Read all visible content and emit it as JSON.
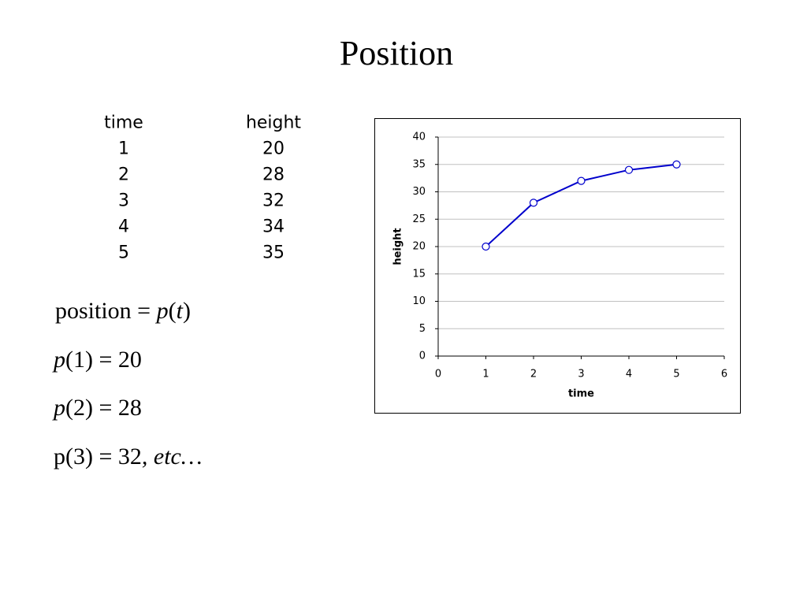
{
  "title": "Position",
  "table": {
    "header": [
      "time",
      "height"
    ],
    "rows": [
      [
        1,
        20
      ],
      [
        2,
        28
      ],
      [
        3,
        32
      ],
      [
        4,
        34
      ],
      [
        5,
        35
      ]
    ]
  },
  "equations": [
    [
      "position = ",
      "p",
      "(",
      "t",
      ")"
    ],
    [
      "p",
      "(1) = 20"
    ],
    [
      "p",
      "(2) = 28"
    ],
    [
      "p(3) = 32",
      ", etc…"
    ]
  ],
  "chart_data": {
    "type": "line",
    "x": [
      1,
      2,
      3,
      4,
      5
    ],
    "values": [
      20,
      28,
      32,
      34,
      35
    ],
    "color": "#0000cc",
    "xlabel": "time",
    "ylabel": "height",
    "xlim": [
      0,
      6
    ],
    "xticks": [
      0,
      1,
      2,
      3,
      4,
      5,
      6
    ],
    "ylim": [
      0,
      40
    ],
    "yticks": [
      0,
      5,
      10,
      15,
      20,
      25,
      30,
      35,
      40
    ],
    "grid": true
  }
}
